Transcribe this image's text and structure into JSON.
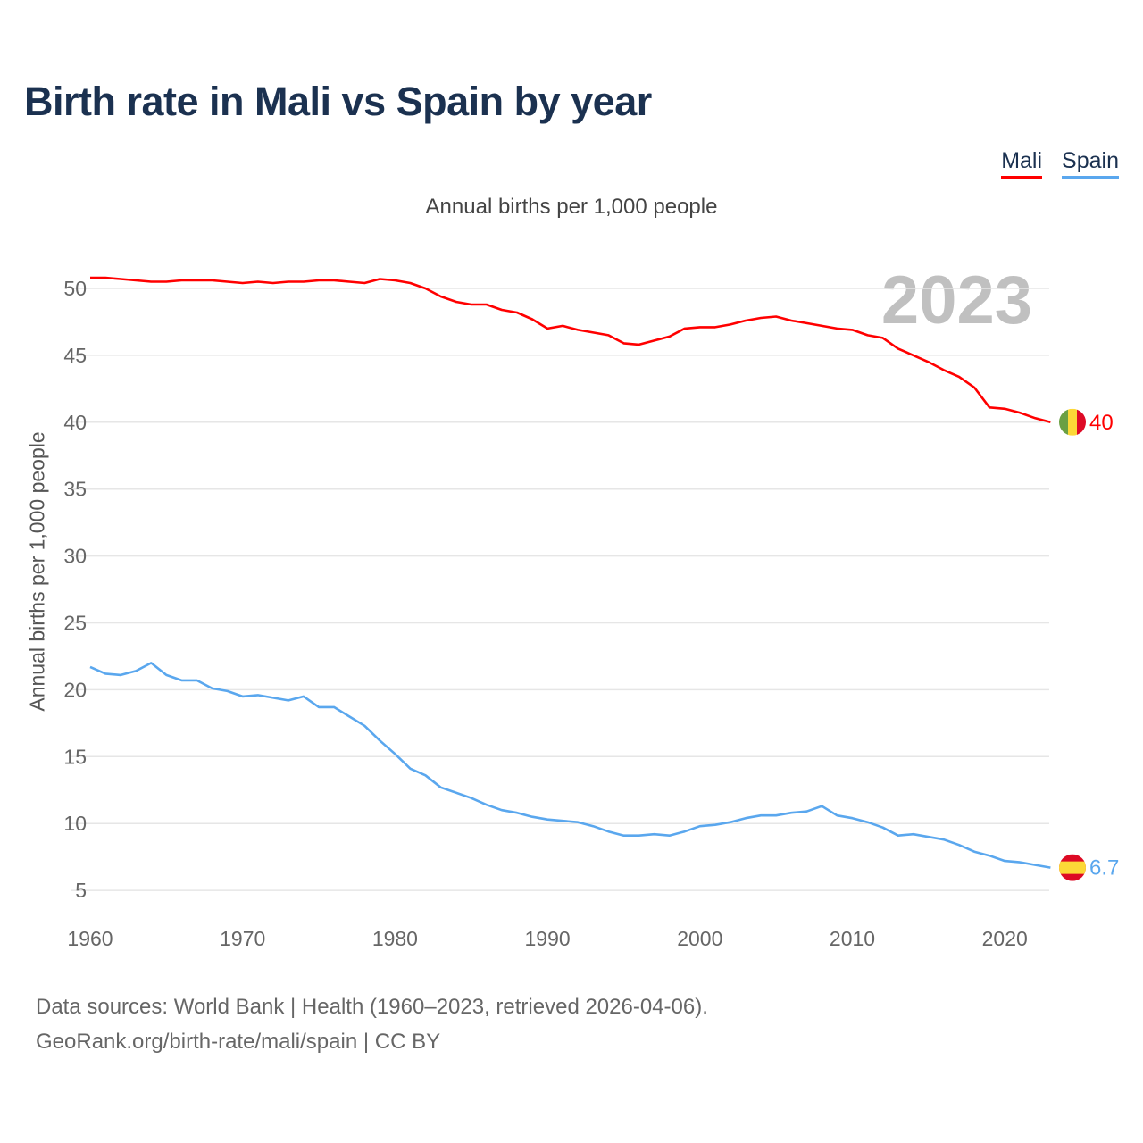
{
  "chart_data": {
    "type": "line",
    "title": "Birth rate in Mali vs Spain by year",
    "subtitle": "Annual births per 1,000 people",
    "xlabel": "",
    "ylabel": "Annual births per 1,000 people",
    "xlim": [
      1960,
      2023
    ],
    "ylim": [
      5,
      50
    ],
    "x_ticks": [
      "1960",
      "1970",
      "1980",
      "1990",
      "2000",
      "2010",
      "2020"
    ],
    "y_ticks": [
      "5",
      "10",
      "15",
      "20",
      "25",
      "30",
      "35",
      "40",
      "45",
      "50"
    ],
    "grid": true,
    "legend_placement": "top-right",
    "year_watermark": "2023",
    "x": [
      1960,
      1961,
      1962,
      1963,
      1964,
      1965,
      1966,
      1967,
      1968,
      1969,
      1970,
      1971,
      1972,
      1973,
      1974,
      1975,
      1976,
      1977,
      1978,
      1979,
      1980,
      1981,
      1982,
      1983,
      1984,
      1985,
      1986,
      1987,
      1988,
      1989,
      1990,
      1991,
      1992,
      1993,
      1994,
      1995,
      1996,
      1997,
      1998,
      1999,
      2000,
      2001,
      2002,
      2003,
      2004,
      2005,
      2006,
      2007,
      2008,
      2009,
      2010,
      2011,
      2012,
      2013,
      2014,
      2015,
      2016,
      2017,
      2018,
      2019,
      2020,
      2021,
      2022,
      2023
    ],
    "series": [
      {
        "name": "Mali",
        "color": "#ff0000",
        "end_label": "40",
        "values": [
          50.8,
          50.8,
          50.7,
          50.6,
          50.5,
          50.5,
          50.6,
          50.6,
          50.6,
          50.5,
          50.4,
          50.5,
          50.4,
          50.5,
          50.5,
          50.6,
          50.6,
          50.5,
          50.4,
          50.7,
          50.6,
          50.4,
          50.0,
          49.4,
          49.0,
          48.8,
          48.8,
          48.4,
          48.2,
          47.7,
          47.0,
          47.2,
          46.9,
          46.7,
          46.5,
          45.9,
          45.8,
          46.1,
          46.4,
          47.0,
          47.1,
          47.1,
          47.3,
          47.6,
          47.8,
          47.9,
          47.6,
          47.4,
          47.2,
          47.0,
          46.9,
          46.5,
          46.3,
          45.5,
          45.0,
          44.5,
          43.9,
          43.4,
          42.6,
          41.1,
          41.0,
          40.7,
          40.3,
          40.0
        ]
      },
      {
        "name": "Spain",
        "color": "#5aa7ee",
        "end_label": "6.7",
        "values": [
          21.7,
          21.2,
          21.1,
          21.4,
          22.0,
          21.1,
          20.7,
          20.7,
          20.1,
          19.9,
          19.5,
          19.6,
          19.4,
          19.2,
          19.5,
          18.7,
          18.7,
          18.0,
          17.3,
          16.2,
          15.2,
          14.1,
          13.6,
          12.7,
          12.3,
          11.9,
          11.4,
          11.0,
          10.8,
          10.5,
          10.3,
          10.2,
          10.1,
          9.8,
          9.4,
          9.1,
          9.1,
          9.2,
          9.1,
          9.4,
          9.8,
          9.9,
          10.1,
          10.4,
          10.6,
          10.6,
          10.8,
          10.9,
          11.3,
          10.6,
          10.4,
          10.1,
          9.7,
          9.1,
          9.2,
          9.0,
          8.8,
          8.4,
          7.9,
          7.6,
          7.2,
          7.1,
          6.9,
          6.7
        ]
      }
    ]
  },
  "source": {
    "line1": "Data sources: World Bank | Health (1960–2023, retrieved 2026-04-06).",
    "line2": "GeoRank.org/birth-rate/mali/spain | CC BY"
  }
}
